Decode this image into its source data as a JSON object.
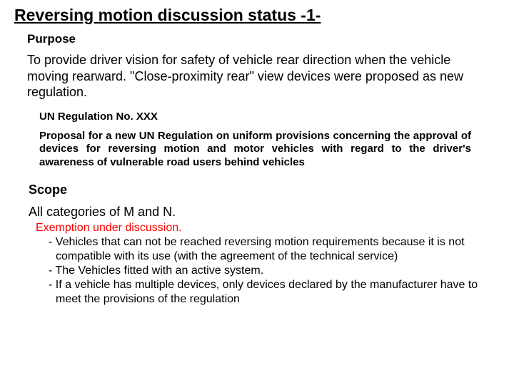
{
  "title": "Reversing motion discussion status -1-",
  "purpose": {
    "heading": "Purpose",
    "body": "To provide driver vision for safety of vehicle rear direction when the vehicle moving rearward. \"Close-proximity rear\" view devices were proposed as new regulation."
  },
  "regulation": {
    "heading": "UN Regulation No. XXX",
    "body": "Proposal for a new UN Regulation on uniform provisions concerning the approval of devices for reversing motion and motor vehicles with regard to the driver's awareness of vulnerable road users behind vehicles"
  },
  "scope": {
    "heading": "Scope",
    "body": "All categories of M and N.",
    "exemption_lead": "Exemption under discussion.",
    "items": [
      "- Vehicles that can not be reached reversing motion requirements because it is not compatible with its use (with the agreement of the technical service)",
      "- The Vehicles fitted with an active system.",
      "- If a vehicle has multiple devices, only devices declared by the manufacturer have to meet the provisions of the regulation"
    ]
  },
  "colors": {
    "text": "#000000",
    "accent": "#ff0000",
    "background": "#ffffff"
  }
}
